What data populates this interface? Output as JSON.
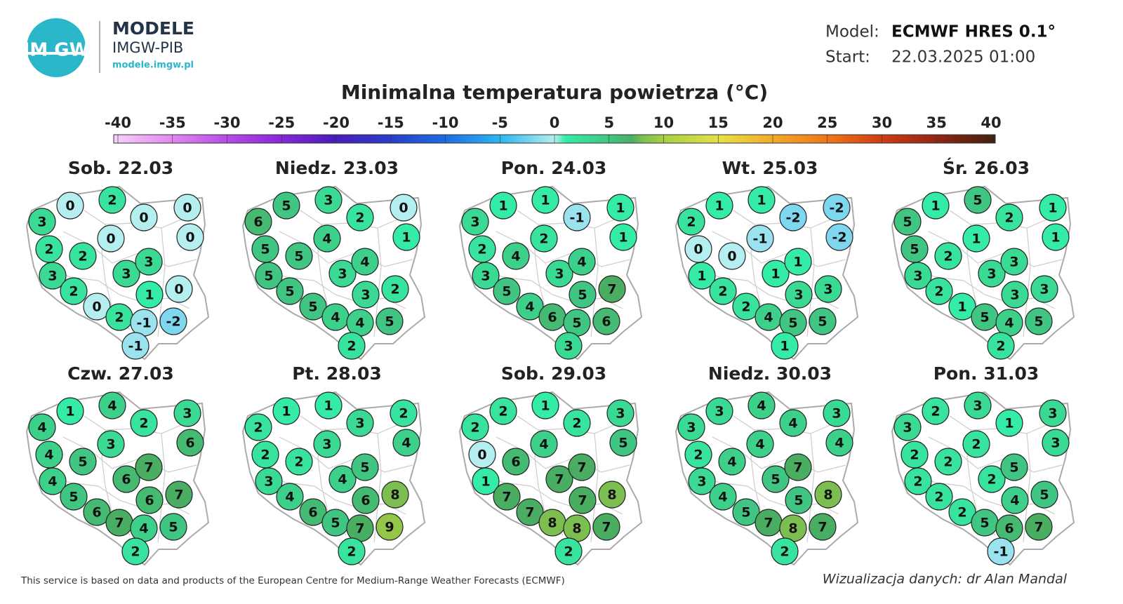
{
  "header": {
    "logo": "IM GW",
    "brand": "MODELE",
    "org": "IMGW-PIB",
    "url": "modele.imgw.pl",
    "model_label": "Model:",
    "model": "ECMWF HRES 0.1°",
    "start_label": "Start:",
    "start": "22.03.2025 01:00"
  },
  "title": "Minimalna temperatura powietrza (°C)",
  "colorbar": {
    "ticks": [
      -40,
      -35,
      -30,
      -25,
      -20,
      -15,
      -10,
      -5,
      0,
      5,
      10,
      15,
      20,
      25,
      30,
      35,
      40
    ],
    "colorscale": [
      [
        -40,
        "#f6d2f8"
      ],
      [
        -35,
        "#e48cf0"
      ],
      [
        -30,
        "#b84ee6"
      ],
      [
        -25,
        "#8a28d8"
      ],
      [
        -20,
        "#4a1cb8"
      ],
      [
        -15,
        "#2a3cc8"
      ],
      [
        -10,
        "#1c6ce0"
      ],
      [
        -5,
        "#2cb4f0"
      ],
      [
        0,
        "#b4eeee"
      ],
      [
        1,
        "#34eca6"
      ],
      [
        5,
        "#40c682"
      ],
      [
        7,
        "#4aae62"
      ],
      [
        8,
        "#7cbe50"
      ],
      [
        10,
        "#a8d044"
      ],
      [
        15,
        "#e6e048"
      ],
      [
        20,
        "#f2a828"
      ],
      [
        25,
        "#ee7418"
      ],
      [
        30,
        "#cc3a14"
      ],
      [
        35,
        "#8c2412"
      ],
      [
        40,
        "#3e2010"
      ]
    ]
  },
  "maps": [
    {
      "title": "Sob. 22.03",
      "values": [
        0,
        2,
        0,
        0,
        3,
        0,
        0,
        2,
        2,
        3,
        3,
        3,
        2,
        1,
        0,
        0,
        2,
        -1,
        -2,
        -1
      ]
    },
    {
      "title": "Niedz. 23.03",
      "values": [
        5,
        3,
        2,
        0,
        6,
        4,
        1,
        5,
        5,
        5,
        3,
        4,
        5,
        3,
        2,
        5,
        4,
        4,
        5,
        2
      ]
    },
    {
      "title": "Pon. 24.03",
      "values": [
        1,
        1,
        -1,
        1,
        3,
        2,
        1,
        2,
        4,
        3,
        3,
        4,
        5,
        5,
        7,
        4,
        6,
        5,
        6,
        3
      ]
    },
    {
      "title": "Wt. 25.03",
      "values": [
        1,
        1,
        -2,
        -2,
        2,
        -1,
        -2,
        0,
        0,
        1,
        1,
        1,
        2,
        3,
        3,
        2,
        4,
        5,
        5,
        1
      ]
    },
    {
      "title": "Śr. 26.03",
      "values": [
        1,
        5,
        2,
        1,
        5,
        1,
        1,
        5,
        2,
        3,
        3,
        3,
        2,
        3,
        3,
        1,
        5,
        4,
        5,
        2
      ]
    },
    {
      "title": "Czw. 27.03",
      "values": [
        1,
        4,
        2,
        3,
        4,
        3,
        6,
        4,
        5,
        4,
        6,
        7,
        5,
        6,
        7,
        6,
        7,
        4,
        5,
        2
      ]
    },
    {
      "title": "Pt. 28.03",
      "values": [
        1,
        1,
        3,
        2,
        2,
        3,
        4,
        2,
        2,
        3,
        4,
        5,
        4,
        6,
        8,
        6,
        5,
        7,
        9,
        2
      ]
    },
    {
      "title": "Sob. 29.03",
      "values": [
        2,
        1,
        2,
        3,
        2,
        4,
        5,
        0,
        6,
        1,
        7,
        7,
        7,
        7,
        8,
        7,
        8,
        8,
        7,
        2
      ]
    },
    {
      "title": "Niedz. 30.03",
      "values": [
        3,
        4,
        4,
        3,
        3,
        4,
        4,
        2,
        4,
        3,
        5,
        7,
        4,
        5,
        8,
        5,
        7,
        8,
        7,
        2
      ]
    },
    {
      "title": "Pon. 31.03",
      "values": [
        2,
        3,
        1,
        3,
        3,
        2,
        3,
        2,
        2,
        2,
        2,
        5,
        2,
        4,
        5,
        2,
        5,
        6,
        7,
        -1
      ]
    }
  ],
  "footer": {
    "source": "This service is based on data and products of the European Centre for Medium-Range Weather Forecasts (ECMWF)",
    "credit": "Wizualizacja danych: dr Alan Mandal"
  }
}
